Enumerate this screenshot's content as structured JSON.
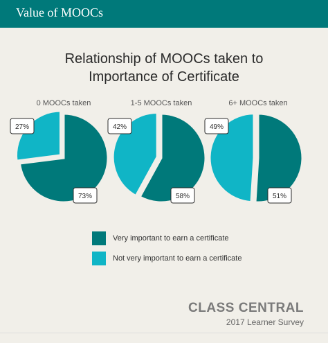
{
  "header": {
    "title": "Value of MOOCs"
  },
  "chart_data": {
    "type": "pie",
    "title": "Relationship of MOOCs taken to\nImportance of Certificate",
    "series_names": [
      "Very important to earn a certificate",
      "Not very important to earn a certificate"
    ],
    "colors": [
      "#00797a",
      "#10b5c6"
    ],
    "charts": [
      {
        "label": "0 MOOCs taken",
        "values": [
          73,
          27
        ],
        "value_labels": [
          "73%",
          "27%"
        ]
      },
      {
        "label": "1-5 MOOCs taken",
        "values": [
          58,
          42
        ],
        "value_labels": [
          "58%",
          "42%"
        ]
      },
      {
        "label": "6+ MOOCs taken",
        "values": [
          51,
          49
        ],
        "value_labels": [
          "51%",
          "49%"
        ]
      }
    ],
    "legend_position": "bottom-center"
  },
  "brand": {
    "name": "CLASS CENTRAL",
    "subtitle": "2017 Learner Survey"
  }
}
